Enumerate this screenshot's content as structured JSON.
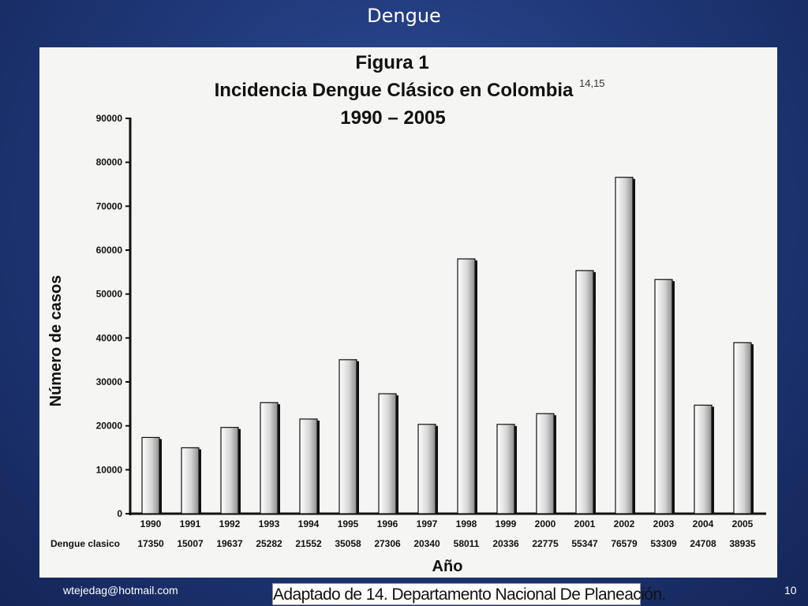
{
  "slide": {
    "title": "Dengue",
    "footer_email": "wtejedag@hotmail.com",
    "source_note": "Adaptado de 14. Departamento Nacional De Planeación.",
    "page_number": "10"
  },
  "colors": {
    "background": "#213a7c",
    "panel": "#f5f5f3",
    "bar_gradient": [
      "#ffffff",
      "#9a9a9a"
    ],
    "axis": "#111111"
  },
  "chart_data": {
    "type": "bar",
    "title_line1": "Figura 1",
    "title_line2": "Incidencia Dengue Clásico en Colombia",
    "title_superscript": "14,15",
    "title_line3": "1990 – 2005",
    "ylabel": "Número de casos",
    "xlabel": "Año",
    "ylim": [
      0,
      90000
    ],
    "yticks": [
      "0",
      "10000",
      "20000",
      "30000",
      "40000",
      "50000",
      "60000",
      "70000",
      "80000",
      "90000"
    ],
    "table_row_label": "Dengue clasico",
    "categories": [
      "1990",
      "1991",
      "1992",
      "1993",
      "1994",
      "1995",
      "1996",
      "1997",
      "1998",
      "1999",
      "2000",
      "2001",
      "2002",
      "2003",
      "2004",
      "2005"
    ],
    "values": [
      17350,
      15007,
      19637,
      25282,
      21552,
      35058,
      27306,
      20340,
      58011,
      20336,
      22775,
      55347,
      76579,
      53309,
      24708,
      38935
    ],
    "value_labels": [
      "17350",
      "15007",
      "19637",
      "25282",
      "21552",
      "35058",
      "27306",
      "20340",
      "58011",
      "20336",
      "22775",
      "55347",
      "76579",
      "53309",
      "24708",
      "38935"
    ],
    "grid": false,
    "legend": "none"
  }
}
